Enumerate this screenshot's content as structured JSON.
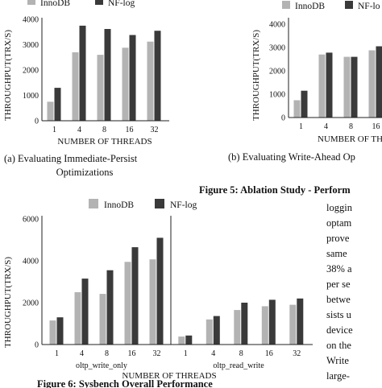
{
  "colors": {
    "innodb": "#b3b3b3",
    "nflog": "#3a3a3a",
    "axis": "#222222"
  },
  "chart_data": [
    {
      "type": "bar",
      "categories": [
        "1",
        "4",
        "8",
        "16",
        "32"
      ],
      "series": [
        {
          "name": "InnoDB",
          "values": [
            750,
            2700,
            2600,
            2880,
            3120
          ]
        },
        {
          "name": "NF-log",
          "values": [
            1300,
            3750,
            3620,
            3380,
            3550
          ]
        }
      ],
      "yticks": [
        0,
        1000,
        2000,
        3000,
        4000
      ],
      "ylim": [
        0,
        4300
      ],
      "xlabel": "NUMBER OF THREADS",
      "ylabel": "THROUGHPUT(TRX/S)",
      "caption": "(a) Evaluating Immediate-Persist Optimizations",
      "legend_position": "top"
    },
    {
      "type": "bar",
      "categories": [
        "1",
        "4",
        "8",
        "16"
      ],
      "series": [
        {
          "name": "InnoDB",
          "values": [
            740,
            2700,
            2600,
            2880
          ]
        },
        {
          "name": "NF-log",
          "values": [
            1150,
            2780,
            2600,
            3050
          ]
        }
      ],
      "yticks": [
        0,
        1000,
        2000,
        3000,
        4000
      ],
      "ylim": [
        0,
        4300
      ],
      "xlabel": "NUMBER OF THREA",
      "ylabel": "THROUGHPUT(TRX/S)",
      "caption": "(b) Evaluating Write-Ahead Op",
      "legend_position": "top"
    },
    {
      "type": "bar",
      "groups": [
        {
          "label": "oltp_write_only",
          "categories": [
            "1",
            "4",
            "8",
            "16",
            "32"
          ],
          "series": [
            {
              "name": "InnoDB",
              "values": [
                1150,
                2500,
                2420,
                3950,
                4070
              ]
            },
            {
              "name": "NF-log",
              "values": [
                1300,
                3150,
                3550,
                4650,
                5100
              ]
            }
          ]
        },
        {
          "label": "oltp_read_write",
          "categories": [
            "1",
            "4",
            "8",
            "16",
            "32"
          ],
          "series": [
            {
              "name": "InnoDB",
              "values": [
                380,
                1200,
                1650,
                1830,
                1900
              ]
            },
            {
              "name": "NF-log",
              "values": [
                430,
                1360,
                2000,
                2140,
                2200
              ]
            }
          ]
        }
      ],
      "yticks": [
        0,
        2000,
        4000,
        6000
      ],
      "ylim": [
        0,
        6000
      ],
      "xlabel": "NUMBER OF THREADS",
      "ylabel": "THROUGHPUT(TRX/S)",
      "legend_position": "top"
    }
  ],
  "legend": {
    "innodb_label": "InnoDB",
    "nflog_label": "NF-log",
    "nflog_label_b": "NF-lo"
  },
  "figure5_caption": "Figure 5: Ablation Study - Perform",
  "figure6_caption": "Figure 6: Sysbench Overall Performance",
  "caption_a_line1": "(a) Evaluating Immediate-Persist",
  "caption_a_line2": "Optimizations",
  "caption_b": "(b) Evaluating Write-Ahead Op",
  "body_text": [
    "loggin",
    "optam",
    "prove",
    "same",
    "38% a",
    "per se",
    "betwe",
    "sists u",
    "device",
    "on the",
    "Write",
    "large-"
  ]
}
